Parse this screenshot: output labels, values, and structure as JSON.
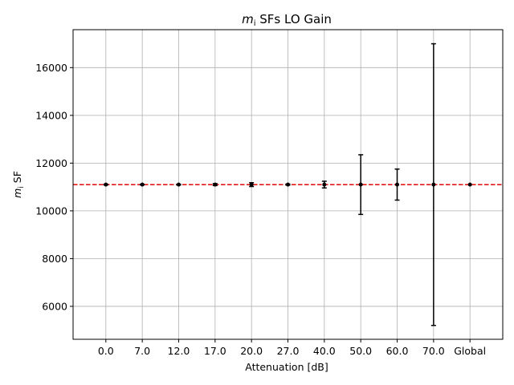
{
  "chart_data": {
    "type": "scatter",
    "title_var": "m",
    "title_sub": "i",
    "title_rest": " SFs LO Gain",
    "xlabel": "Attenuation [dB]",
    "ylabel_var": "m",
    "ylabel_sub": "i",
    "ylabel_rest": " SF",
    "categories": [
      "0.0",
      "7.0",
      "12.0",
      "17.0",
      "20.0",
      "27.0",
      "40.0",
      "50.0",
      "60.0",
      "70.0",
      "Global"
    ],
    "values": [
      11100,
      11100,
      11100,
      11100,
      11100,
      11100,
      11100,
      11100,
      11100,
      11100,
      11100
    ],
    "errors": [
      10,
      10,
      15,
      40,
      80,
      20,
      140,
      1250,
      650,
      5900,
      0
    ],
    "reference_line": {
      "value": 11100,
      "color": "#e31a1c",
      "style": "dashed"
    },
    "ylim": [
      4620,
      17590
    ],
    "yticks": [
      6000,
      8000,
      10000,
      12000,
      14000,
      16000
    ],
    "grid": true,
    "marker_color": "#000000",
    "grid_color": "#b0b0b0"
  }
}
